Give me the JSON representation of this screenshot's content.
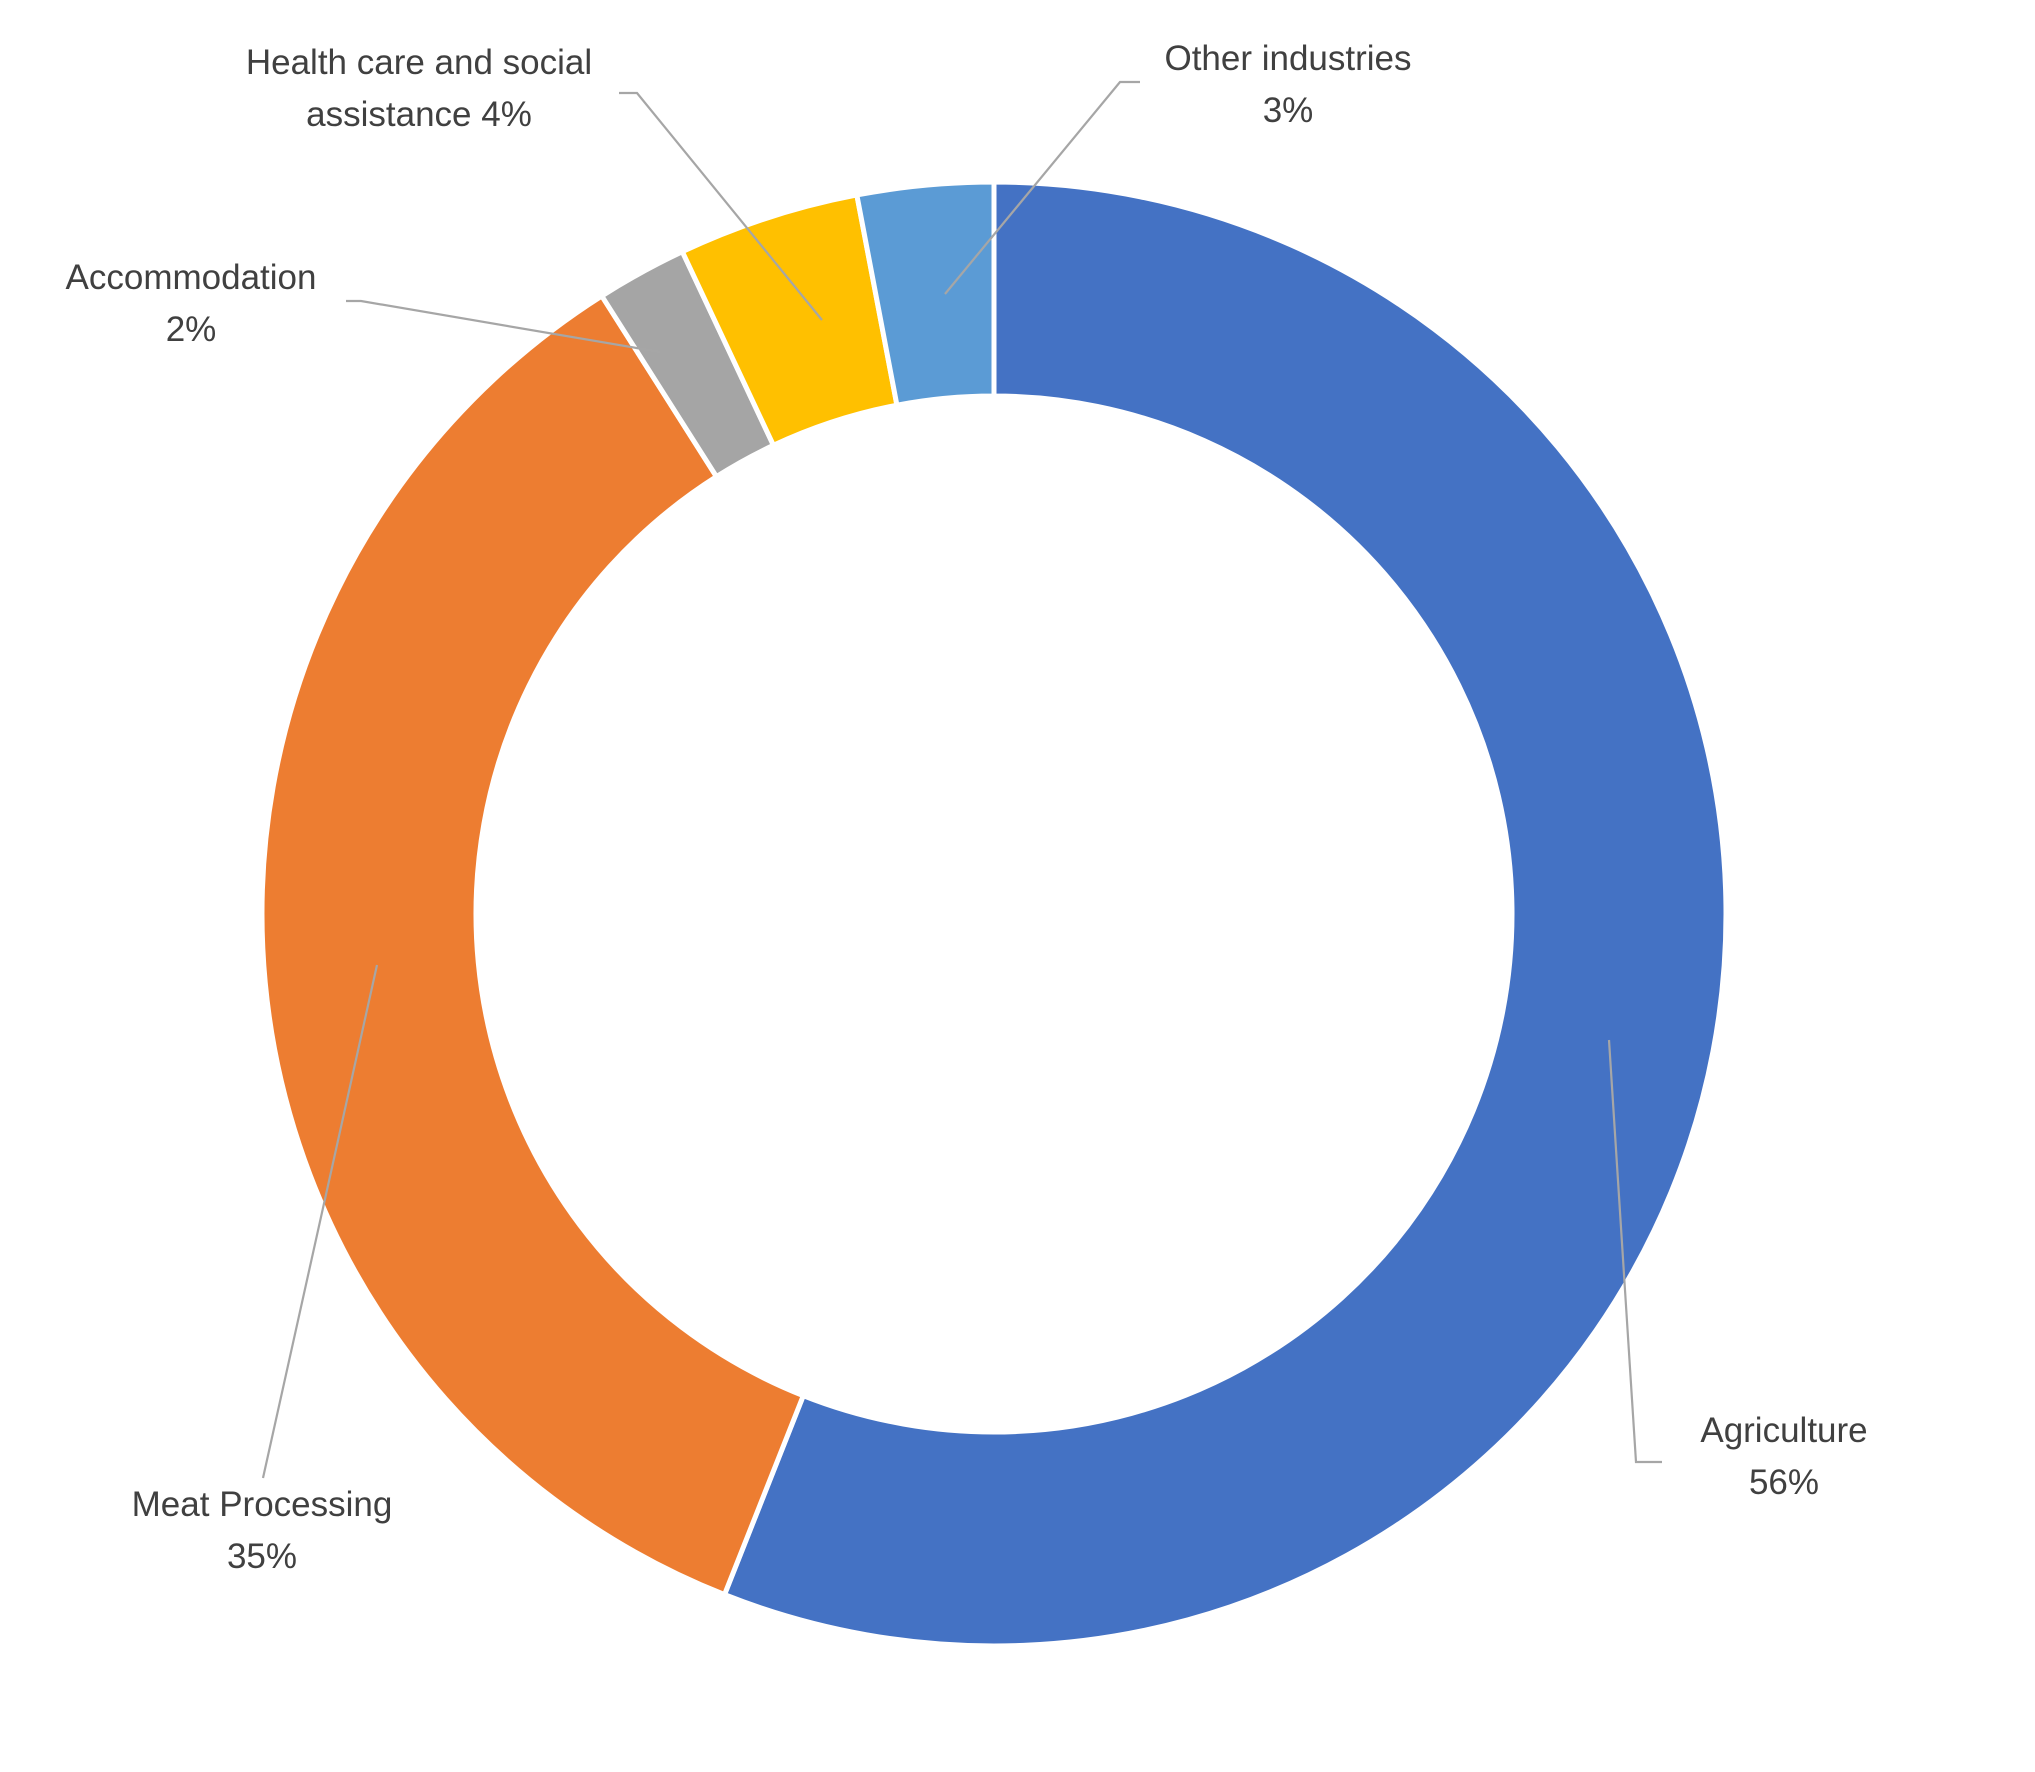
{
  "chart_data": {
    "type": "pie",
    "donut": true,
    "title": "",
    "grid": false,
    "legend": "none",
    "start_angle_deg": 0,
    "direction": "clockwise",
    "slices": [
      {
        "label": "Agriculture",
        "value": 56,
        "value_label": "56%",
        "color": "#4472C4"
      },
      {
        "label": "Meat Processing",
        "value": 35,
        "value_label": "35%",
        "color": "#ED7D31"
      },
      {
        "label": "Accommodation",
        "value": 2,
        "value_label": "2%",
        "color": "#A5A5A5"
      },
      {
        "label": "Health care and social assistance",
        "value": 4,
        "value_label": "4%",
        "color": "#FFC000"
      },
      {
        "label": "Other industries",
        "value": 3,
        "value_label": "3%",
        "color": "#5B9BD5"
      }
    ],
    "data_labels": [
      {
        "lines": [
          "Agriculture",
          "56%"
        ]
      },
      {
        "lines": [
          "Meat Processing",
          "35%"
        ]
      },
      {
        "lines": [
          "Accommodation",
          "2%"
        ]
      },
      {
        "lines": [
          "Health care and social",
          "assistance 4%"
        ]
      },
      {
        "lines": [
          "Other industries",
          "3%"
        ]
      }
    ],
    "leader_line_color": "#A6A6A6",
    "label_text_color": "#404040"
  }
}
